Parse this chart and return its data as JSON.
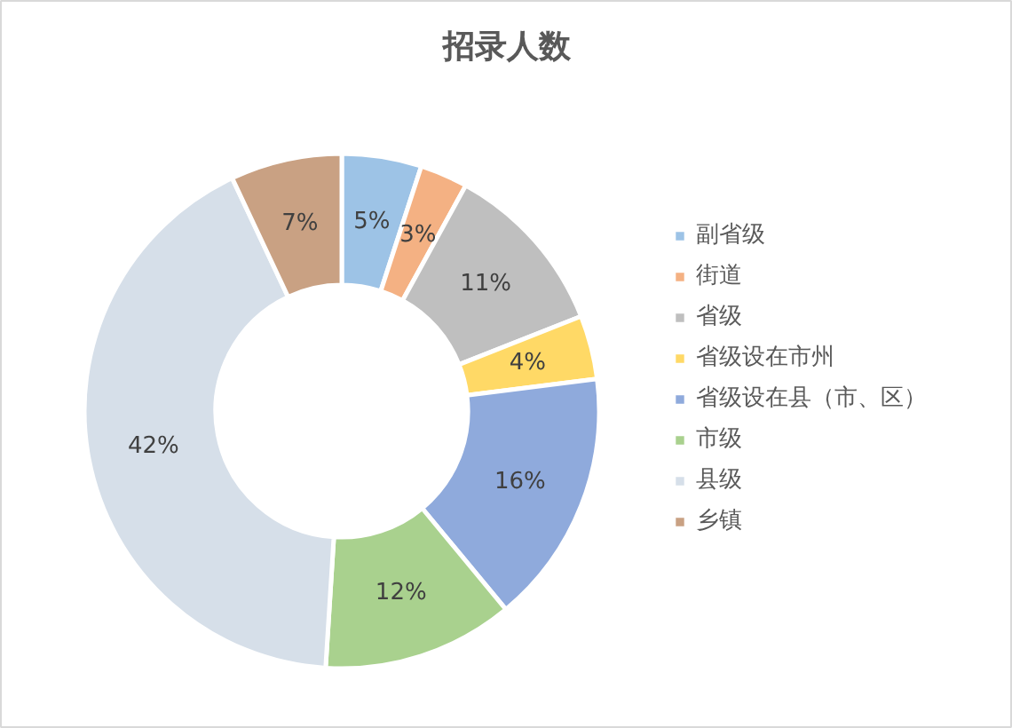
{
  "chart_data": {
    "type": "donut",
    "title": "招录人数",
    "categories": [
      "副省级",
      "街道",
      "省级",
      "省级设在市州",
      "省级设在县（市、区）",
      "市级",
      "县级",
      "乡镇"
    ],
    "values": [
      5,
      3,
      11,
      4,
      16,
      12,
      42,
      7
    ],
    "value_labels": [
      "5%",
      "3%",
      "11%",
      "4%",
      "16%",
      "12%",
      "42%",
      "7%"
    ],
    "colors": [
      "#9dc3e6",
      "#f4b183",
      "#bfbfbf",
      "#ffd966",
      "#8faadc",
      "#a9d18e",
      "#d6dfe9",
      "#c9a183"
    ],
    "legend": "right"
  }
}
